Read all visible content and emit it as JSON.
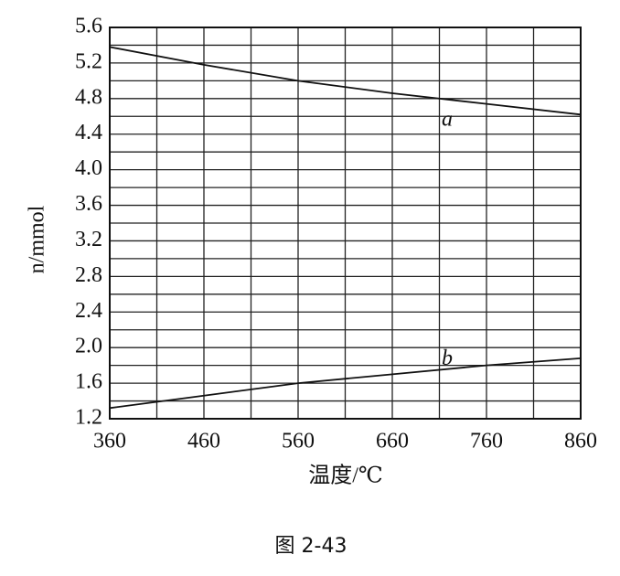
{
  "chart_data": {
    "type": "line",
    "caption": "图 2-43",
    "x_label": "温度/℃",
    "y_label": "n/mmol",
    "x": [
      360,
      460,
      560,
      660,
      760,
      860
    ],
    "series": [
      {
        "name": "a",
        "color": "#111111",
        "values": [
          5.38,
          5.18,
          5.0,
          4.86,
          4.74,
          4.62
        ]
      },
      {
        "name": "b",
        "color": "#111111",
        "values": [
          1.32,
          1.46,
          1.6,
          1.7,
          1.8,
          1.88
        ]
      }
    ],
    "xlim": [
      360,
      860
    ],
    "xticks": [
      360,
      460,
      560,
      660,
      760,
      860
    ],
    "xminorticks": [
      410,
      510,
      610,
      710,
      810
    ],
    "ylim": [
      1.2,
      5.6
    ],
    "yticks": [
      1.2,
      1.6,
      {
        "value": 2,
        "label": "2.0"
      },
      2.4,
      2.8,
      3.2,
      3.6,
      {
        "value": 4,
        "label": "4.0"
      },
      4.4,
      4.8,
      5.2,
      5.6
    ],
    "yminorticks": [
      1.4,
      1.8,
      2.2,
      2.6,
      3.0,
      3.4,
      3.8,
      4.2,
      4.6,
      5.0,
      5.4
    ],
    "grid": true
  }
}
